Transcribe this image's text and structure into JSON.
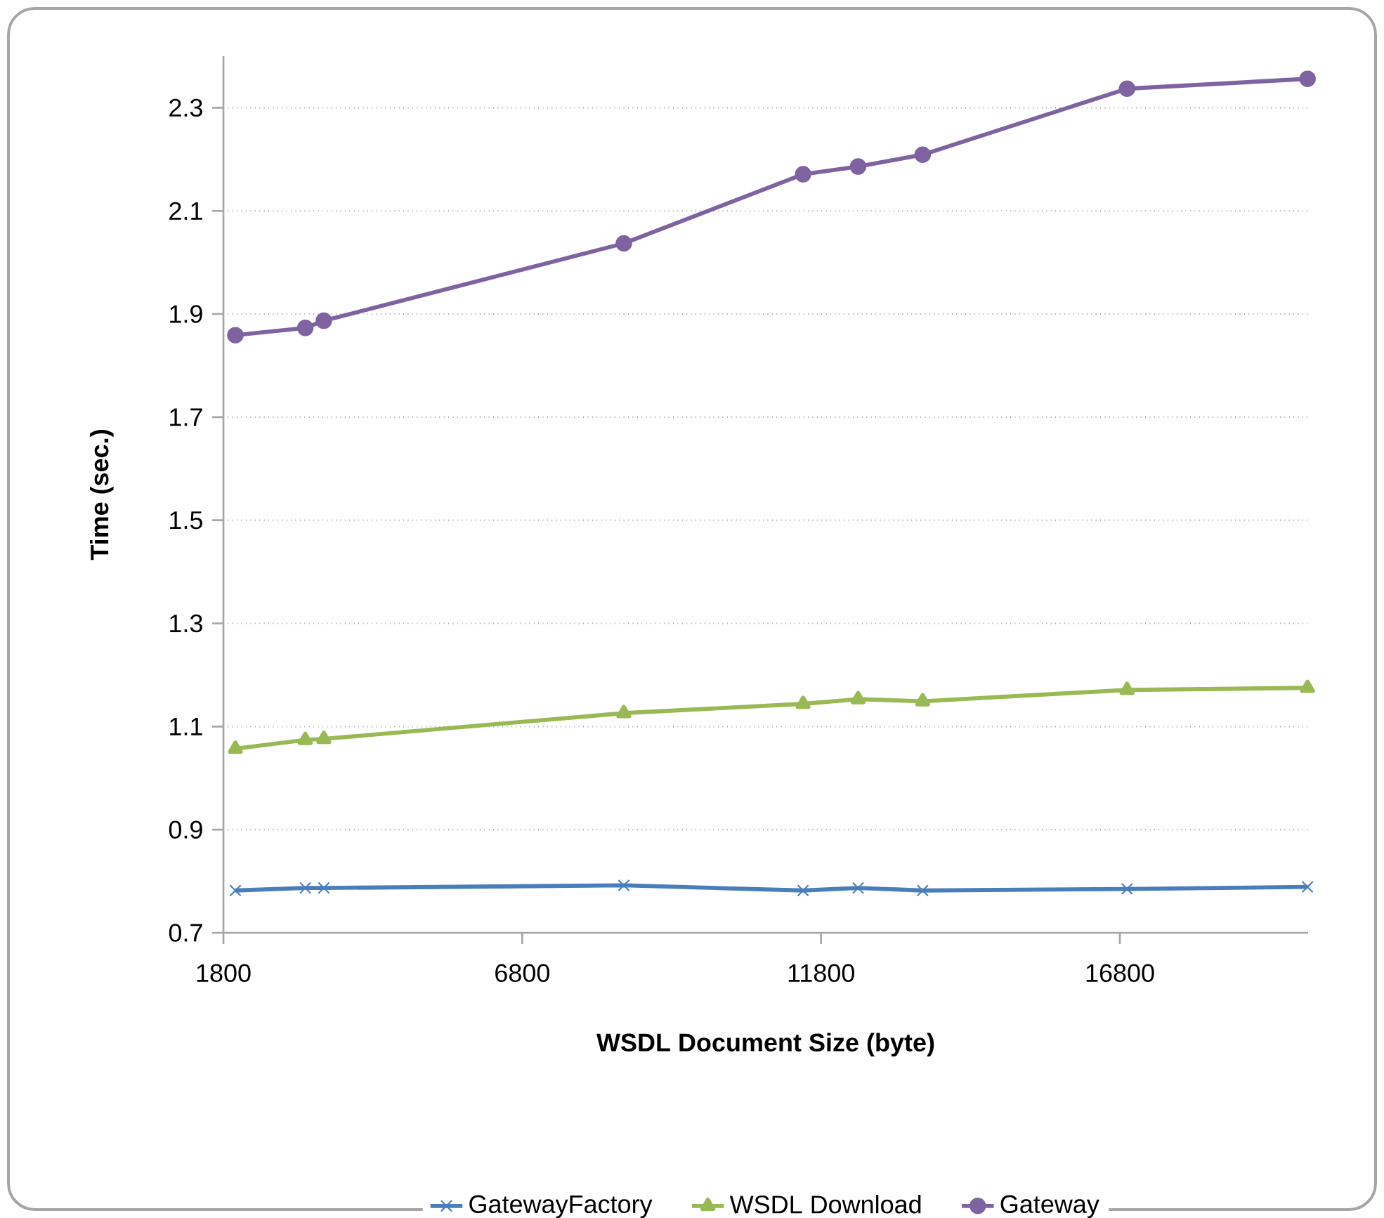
{
  "chart_data": {
    "type": "line",
    "xlabel": "WSDL Document Size (byte)",
    "ylabel": "Time (sec.)",
    "x": [
      2000,
      3170,
      3480,
      8500,
      11500,
      12420,
      13500,
      16920,
      19940
    ],
    "series": [
      {
        "name": "GatewayFactory",
        "color": "#4a7ebb",
        "marker": "cross",
        "values": [
          0.782,
          0.787,
          0.787,
          0.792,
          0.782,
          0.787,
          0.782,
          0.785,
          0.789
        ]
      },
      {
        "name": "WSDL Download",
        "color": "#98b954",
        "marker": "triangle",
        "values": [
          1.057,
          1.074,
          1.076,
          1.126,
          1.144,
          1.153,
          1.149,
          1.171,
          1.175
        ]
      },
      {
        "name": "Gateway",
        "color": "#7f63a1",
        "marker": "circle",
        "values": [
          1.859,
          1.873,
          1.887,
          2.037,
          2.171,
          2.186,
          2.209,
          2.337,
          2.356
        ]
      }
    ],
    "xlim": [
      1800,
      19950
    ],
    "xticks": [
      1800,
      6800,
      11800,
      16800
    ],
    "ylim": [
      0.7,
      2.4
    ],
    "yticks": [
      0.7,
      0.9,
      1.1,
      1.3,
      1.5,
      1.7,
      1.9,
      2.1,
      2.3
    ],
    "grid": "y",
    "legend": "bottom",
    "line_style": "solid"
  }
}
